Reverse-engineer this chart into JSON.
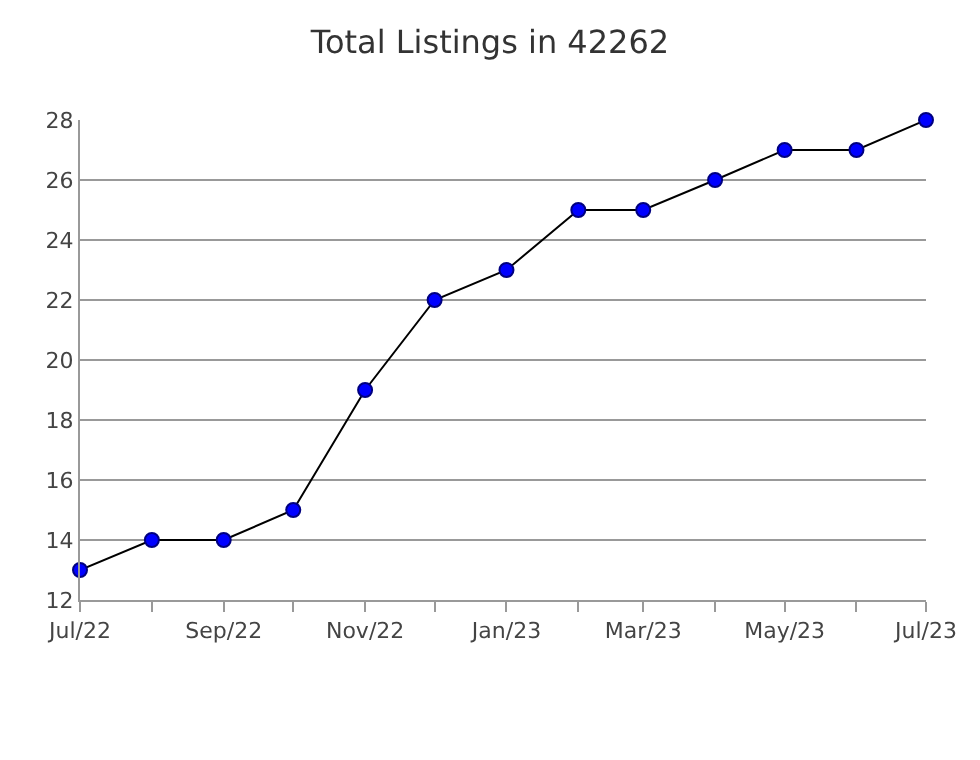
{
  "chart_data": {
    "type": "line",
    "title": "Total Listings in 42262",
    "x": [
      "2022-07",
      "2022-08",
      "2022-09",
      "2022-10",
      "2022-11",
      "2022-12",
      "2023-01",
      "2023-02",
      "2023-03",
      "2023-04",
      "2023-05",
      "2023-06",
      "2023-07"
    ],
    "series": [
      {
        "color": "#0000ff",
        "values": [
          13,
          14,
          14,
          15,
          19,
          22,
          23,
          25,
          25,
          26,
          27,
          27,
          28
        ]
      }
    ],
    "xlim": [
      "2022-07",
      "2023-07"
    ],
    "xticks": [
      {
        "value": "2022-07",
        "label": "Jul/22"
      },
      {
        "value": "2022-08",
        "label": null
      },
      {
        "value": "2022-09",
        "label": "Sep/22"
      },
      {
        "value": "2022-10",
        "label": null
      },
      {
        "value": "2022-11",
        "label": "Nov/22"
      },
      {
        "value": "2022-12",
        "label": null
      },
      {
        "value": "2023-01",
        "label": "Jan/23"
      },
      {
        "value": "2023-02",
        "label": null
      },
      {
        "value": "2023-03",
        "label": "Mar/23"
      },
      {
        "value": "2023-04",
        "label": null
      },
      {
        "value": "2023-05",
        "label": "May/23"
      },
      {
        "value": "2023-06",
        "label": null
      },
      {
        "value": "2023-07",
        "label": "Jul/23"
      }
    ],
    "ylim": [
      12,
      28
    ],
    "yticks": [
      12,
      14,
      16,
      18,
      20,
      22,
      24,
      26,
      28
    ],
    "grid": "y",
    "marker": "circle",
    "line_style": "solid"
  }
}
